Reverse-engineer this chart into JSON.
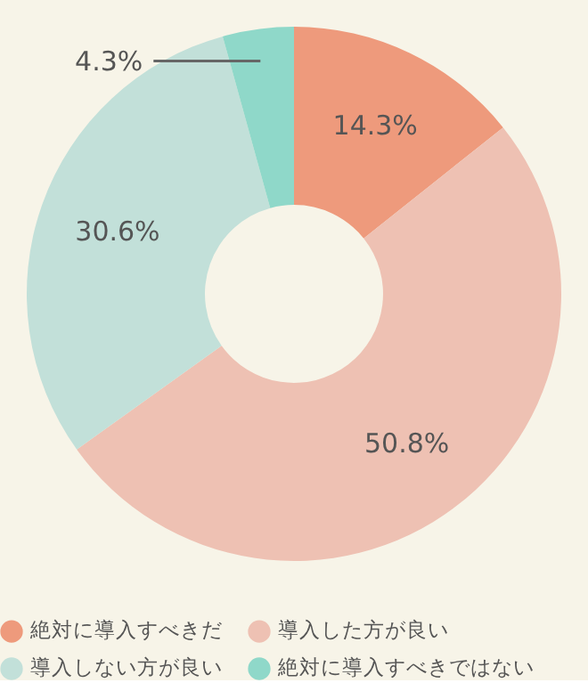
{
  "chart_data": {
    "type": "donut",
    "categories": [
      "絶対に導入すべきだ",
      "導入した方が良い",
      "導入しない方が良い",
      "絶対に導入すべきではない"
    ],
    "values": [
      14.3,
      50.8,
      30.6,
      4.3
    ],
    "colors": [
      "#ee9a7c",
      "#eec1b3",
      "#c2e0d9",
      "#8fd8c9"
    ],
    "value_labels": [
      "14.3%",
      "50.8%",
      "30.6%",
      "4.3%"
    ],
    "legend": "bottom"
  }
}
